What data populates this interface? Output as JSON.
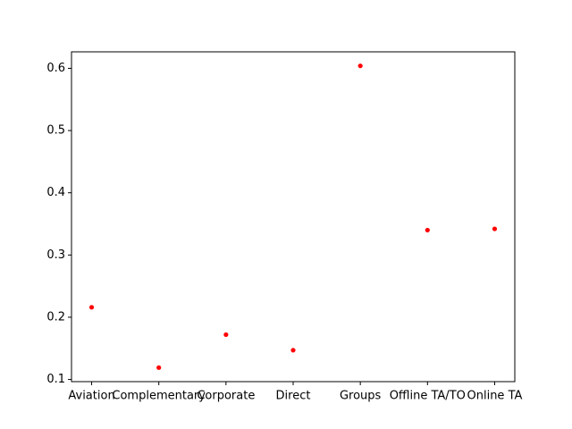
{
  "chart_data": {
    "type": "scatter",
    "title": "",
    "xlabel": "",
    "ylabel": "",
    "categories": [
      "Aviation",
      "Complementary",
      "Corporate",
      "Direct",
      "Groups",
      "Offline TA/TO",
      "Online TA"
    ],
    "series": [
      {
        "values": [
          0.216,
          0.119,
          0.172,
          0.147,
          0.604,
          0.34,
          0.342
        ]
      }
    ],
    "ylim": [
      0.0965,
      0.6265
    ],
    "yticks": [
      "0.1",
      "0.2",
      "0.3",
      "0.4",
      "0.5",
      "0.6"
    ],
    "grid": false,
    "legend": "none",
    "colors": {
      "marker": "#ff0000",
      "axis": "#000000"
    }
  }
}
